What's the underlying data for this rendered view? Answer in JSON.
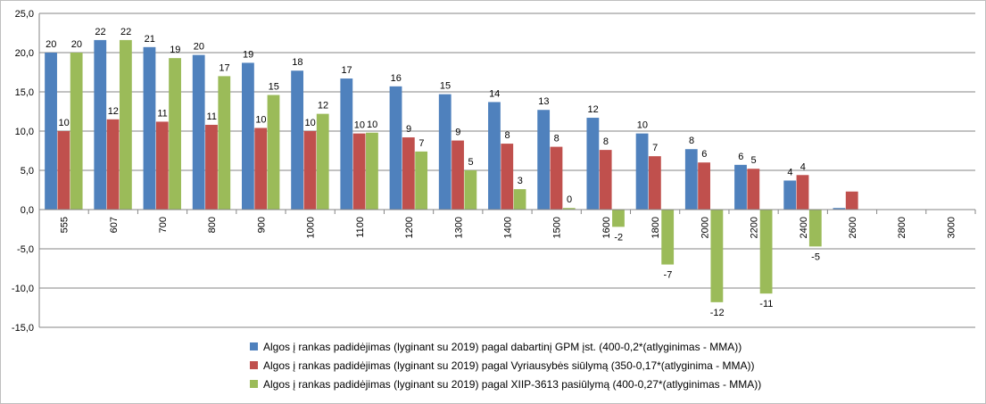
{
  "chart_data": {
    "type": "bar",
    "categories": [
      "555",
      "607",
      "700",
      "800",
      "900",
      "1000",
      "1100",
      "1200",
      "1300",
      "1400",
      "1500",
      "1600",
      "1800",
      "2000",
      "2200",
      "2400",
      "2600",
      "2800",
      "3000"
    ],
    "ylim": [
      -15,
      25
    ],
    "yticks": [
      "-15,0",
      "-10,0",
      "-5,0",
      "0,0",
      "5,0",
      "10,0",
      "15,0",
      "20,0",
      "25,0"
    ],
    "ytick_values": [
      -15,
      -10,
      -5,
      0,
      5,
      10,
      15,
      20,
      25
    ],
    "grid": true,
    "legend_position": "bottom",
    "series": [
      {
        "name": "Algos į rankas padidėjimas (lyginant su 2019) pagal dabartinį GPM įst. (400-0,2*(atlyginimas - MMA))",
        "color": "#4f81bd",
        "values": [
          20.0,
          21.6,
          20.7,
          19.7,
          18.7,
          17.7,
          16.7,
          15.7,
          14.7,
          13.7,
          12.7,
          11.7,
          9.7,
          7.7,
          5.7,
          3.7,
          0.2,
          0,
          0
        ],
        "labels": [
          "20",
          "22",
          "21",
          "20",
          "19",
          "18",
          "17",
          "16",
          "15",
          "14",
          "13",
          "12",
          "10",
          "8",
          "6",
          "4",
          "",
          "",
          ""
        ]
      },
      {
        "name": "Algos  į rankas padidėjimas (lyginant su 2019) pagal Vyriausybės siūlymą (350-0,17*(atlyginima - MMA))",
        "color": "#c0504d",
        "values": [
          10.0,
          11.5,
          11.2,
          10.8,
          10.4,
          10.0,
          9.7,
          9.2,
          8.8,
          8.4,
          8.0,
          7.6,
          6.8,
          6.0,
          5.2,
          4.4,
          2.3,
          0,
          0
        ],
        "labels": [
          "10",
          "12",
          "11",
          "11",
          "10",
          "10",
          "10",
          "9",
          "9",
          "8",
          "8",
          "8",
          "7",
          "6",
          "5",
          "4",
          "",
          "",
          ""
        ]
      },
      {
        "name": "Algos  į rankas padidėjimas (lyginant su 2019) pagal XIIP-3613 pasiūlymą (400-0,27*(atlyginimas - MMA))",
        "color": "#9bbb59",
        "values": [
          20.0,
          21.6,
          19.3,
          17.0,
          14.6,
          12.2,
          9.8,
          7.4,
          5.0,
          2.6,
          0.2,
          -2.2,
          -7.0,
          -11.8,
          -10.7,
          -4.7,
          0,
          0,
          0
        ],
        "labels": [
          "20",
          "22",
          "19",
          "17",
          "15",
          "12",
          "10",
          "7",
          "5",
          "3",
          "0",
          "-2",
          "-7",
          "-12",
          "-11",
          "-5",
          "",
          "",
          ""
        ]
      }
    ]
  }
}
